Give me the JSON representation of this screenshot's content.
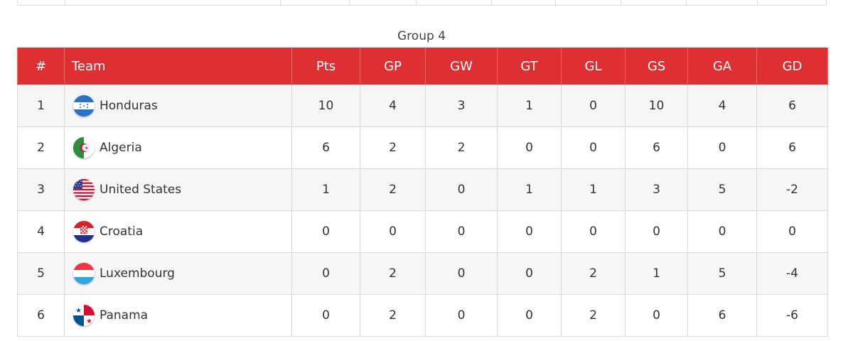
{
  "group_title": "Group 4",
  "columns": {
    "pos": "#",
    "team": "Team",
    "pts": "Pts",
    "gp": "GP",
    "gw": "GW",
    "gt": "GT",
    "gl": "GL",
    "gs": "GS",
    "ga": "GA",
    "gd": "GD"
  },
  "colors": {
    "header_bg": "#de2f33",
    "header_text": "#ffffff",
    "row_alt": "#f6f6f7",
    "border": "#d9d9d9"
  },
  "rows": [
    {
      "pos": "1",
      "team": "Honduras",
      "flag_icon": "honduras-flag-icon",
      "pts": "10",
      "gp": "4",
      "gw": "3",
      "gt": "1",
      "gl": "0",
      "gs": "10",
      "ga": "4",
      "gd": "6"
    },
    {
      "pos": "2",
      "team": "Algeria",
      "flag_icon": "algeria-flag-icon",
      "pts": "6",
      "gp": "2",
      "gw": "2",
      "gt": "0",
      "gl": "0",
      "gs": "6",
      "ga": "0",
      "gd": "6"
    },
    {
      "pos": "3",
      "team": "United States",
      "flag_icon": "united-states-flag-icon",
      "pts": "1",
      "gp": "2",
      "gw": "0",
      "gt": "1",
      "gl": "1",
      "gs": "3",
      "ga": "5",
      "gd": "-2"
    },
    {
      "pos": "4",
      "team": "Croatia",
      "flag_icon": "croatia-flag-icon",
      "pts": "0",
      "gp": "0",
      "gw": "0",
      "gt": "0",
      "gl": "0",
      "gs": "0",
      "ga": "0",
      "gd": "0"
    },
    {
      "pos": "5",
      "team": "Luxembourg",
      "flag_icon": "luxembourg-flag-icon",
      "pts": "0",
      "gp": "2",
      "gw": "0",
      "gt": "0",
      "gl": "2",
      "gs": "1",
      "ga": "5",
      "gd": "-4"
    },
    {
      "pos": "6",
      "team": "Panama",
      "flag_icon": "panama-flag-icon",
      "pts": "0",
      "gp": "2",
      "gw": "0",
      "gt": "0",
      "gl": "2",
      "gs": "0",
      "ga": "6",
      "gd": "-6"
    }
  ]
}
